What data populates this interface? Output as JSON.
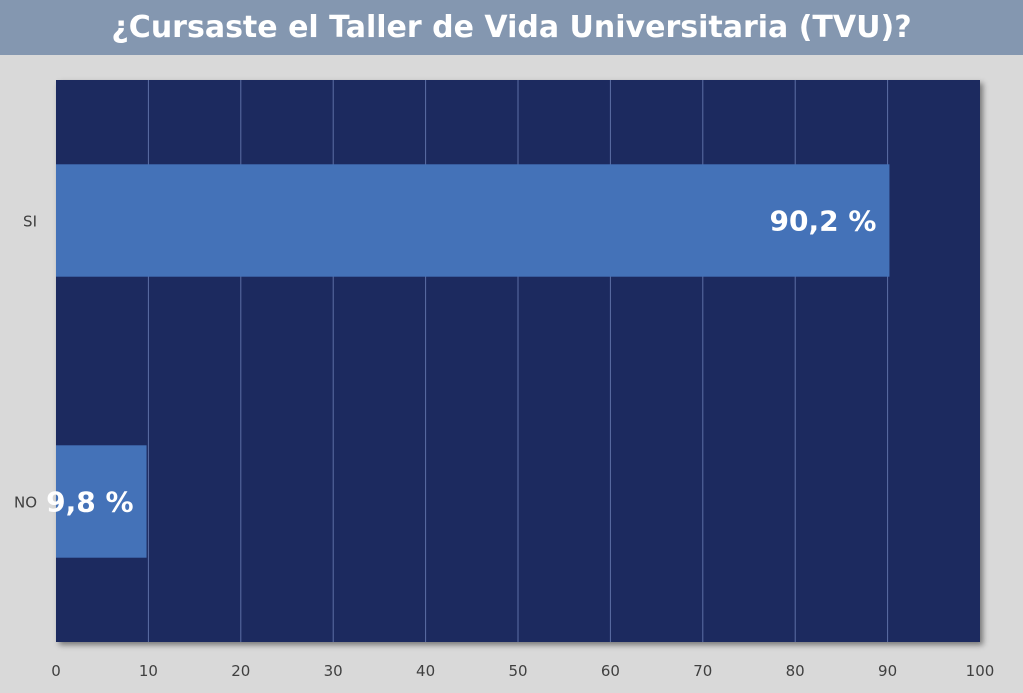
{
  "chart_data": {
    "type": "bar",
    "orientation": "horizontal",
    "title": "¿Cursaste el Taller de Vida Universitaria (TVU)?",
    "categories": [
      "SI",
      "NO"
    ],
    "values": [
      90.2,
      9.8
    ],
    "data_labels": [
      "90,2 %",
      "9,8 %"
    ],
    "xlim": [
      0,
      100
    ],
    "xticks": [
      "0",
      "10",
      "20",
      "30",
      "40",
      "50",
      "60",
      "70",
      "80",
      "90",
      "100"
    ],
    "grid": true,
    "legend": "none",
    "colors": {
      "background": "#d9d9d9",
      "title_bar": "#8497b0",
      "plot_area": "#1f2a5e",
      "bar": "#4472b8",
      "gridline": "#5d6fa6",
      "tick_text": "#404040"
    }
  }
}
